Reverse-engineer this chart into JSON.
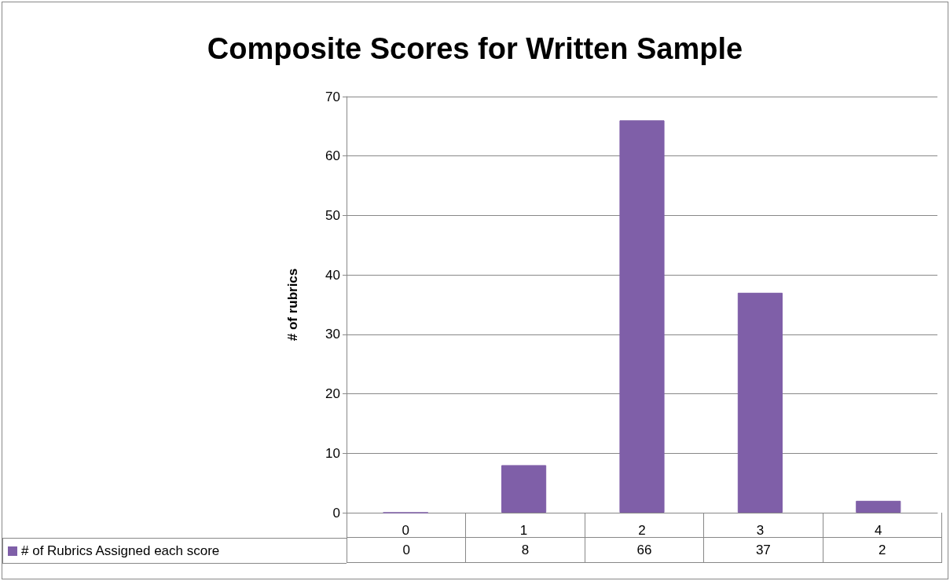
{
  "chart_data": {
    "type": "bar",
    "title": "Composite Scores for Written Sample",
    "ylabel": "# of rubrics",
    "categories": [
      "0",
      "1",
      "2",
      "3",
      "4"
    ],
    "series": [
      {
        "name": "# of Rubrics Assigned each score",
        "color": "#7f5fa8",
        "values": [
          0,
          8,
          66,
          37,
          2
        ]
      }
    ],
    "ylim": [
      0,
      70
    ],
    "yticks": [
      0,
      10,
      20,
      30,
      40,
      50,
      60,
      70
    ],
    "grid": "y",
    "legend": "bottom",
    "data_labels": true
  }
}
